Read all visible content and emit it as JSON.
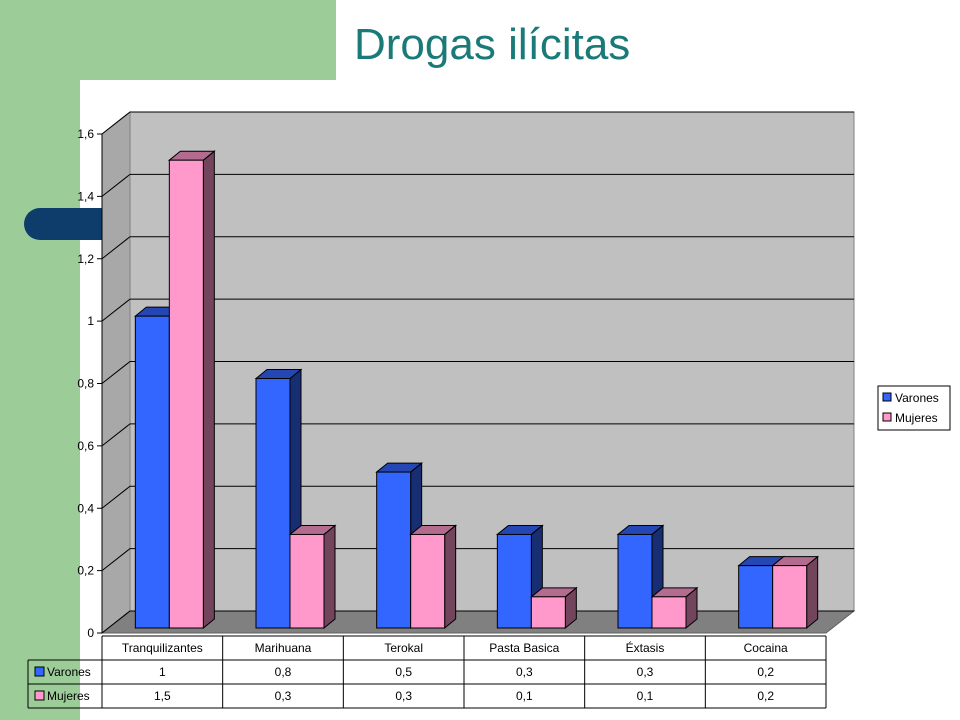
{
  "slide": {
    "title": "Drogas ilícitas",
    "colors": {
      "sidebar": "#9ccc97",
      "title": "#1a7a78",
      "accent_tab": "#0f3d6b"
    }
  },
  "chart_data": {
    "type": "bar",
    "style": "3d-clustered-column",
    "categories": [
      "Tranquilizantes",
      "Marihuana",
      "Terokal",
      "Pasta Basica",
      "Éxtasis",
      "Cocaina"
    ],
    "series": [
      {
        "name": "Varones",
        "values": [
          1,
          0.8,
          0.5,
          0.3,
          0.3,
          0.2
        ],
        "labels": [
          "1",
          "0,8",
          "0,5",
          "0,3",
          "0,3",
          "0,2"
        ],
        "color": "#3366ff"
      },
      {
        "name": "Mujeres",
        "values": [
          1.5,
          0.3,
          0.3,
          0.1,
          0.1,
          0.2
        ],
        "labels": [
          "1,5",
          "0,3",
          "0,3",
          "0,1",
          "0,1",
          "0,2"
        ],
        "color": "#ff99cc"
      }
    ],
    "yticks": [
      0,
      0.2,
      0.4,
      0.6,
      0.8,
      1,
      1.2,
      1.4,
      1.6
    ],
    "ytick_labels": [
      "0",
      "0,2",
      "0,4",
      "0,6",
      "0,8",
      "1",
      "1,2",
      "1,4",
      "1,6"
    ],
    "ylim": [
      0,
      1.6
    ],
    "grid": true,
    "legend": "right",
    "data_table": true
  }
}
